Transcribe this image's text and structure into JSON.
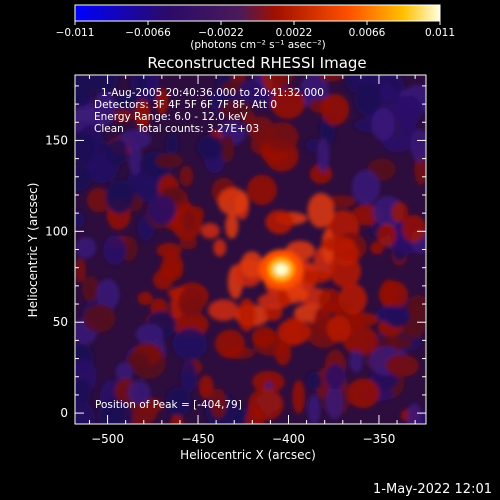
{
  "chart_data": {
    "type": "heatmap",
    "title": "Reconstructed RHESSI Image",
    "xlabel": "Heliocentric X (arcsec)",
    "ylabel": "Heliocentric Y (arcsec)",
    "xlim": [
      -518,
      -324
    ],
    "ylim": [
      -6,
      186
    ],
    "x_ticks": [
      -500,
      -450,
      -400,
      -350
    ],
    "x_tick_labels": [
      "−500",
      "−450",
      "−400",
      "−350"
    ],
    "y_ticks": [
      0,
      50,
      100,
      150
    ],
    "y_tick_labels": [
      "0",
      "50",
      "100",
      "150"
    ],
    "colorbar": {
      "range": [
        -0.011,
        0.011
      ],
      "tick_labels": [
        "−0.011",
        "−0.0066",
        "−0.0022",
        "0.0022",
        "0.0066",
        "0.011"
      ],
      "units": "(photons cm⁻² s⁻¹ asec⁻²)",
      "colors": [
        "#0000ff",
        "#2a0a6a",
        "#4a1a5a",
        "#a01000",
        "#ff5000",
        "#ffc000",
        "#ffffe0"
      ]
    },
    "peak": {
      "x": -404,
      "y": 79,
      "value": 0.011
    },
    "annotations": [
      "1-Aug-2005 20:40:36.000 to 20:41:32.000",
      "Detectors: 3F 4F 5F 6F 7F 8F, Att 0",
      "Energy Range: 6.0 - 12.0 keV",
      "Clean    Total counts: 3.27E+03"
    ],
    "footer_note": "Position of Peak = [-404,79]"
  },
  "timestamp": "1-May-2022 12:01"
}
